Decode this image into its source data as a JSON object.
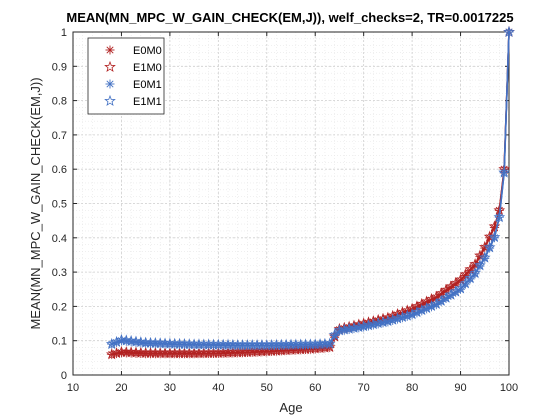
{
  "chart_data": {
    "type": "line",
    "title": "MEAN(MN_MPC_W_GAIN_CHECK(EM,J)), welf_checks=2, TR=0.0017225",
    "xlabel": "Age",
    "ylabel": "MEAN(MN_MPC_W_GAIN_CHECK(EM,J))",
    "xlim": [
      10,
      100
    ],
    "ylim": [
      0,
      1
    ],
    "xticks": [
      "10",
      "20",
      "30",
      "40",
      "50",
      "60",
      "70",
      "80",
      "90",
      "100"
    ],
    "yticks": [
      "0",
      "0.1",
      "0.2",
      "0.3",
      "0.4",
      "0.5",
      "0.6",
      "0.7",
      "0.8",
      "0.9",
      "1"
    ],
    "grid": "on",
    "legend_position": "top-left",
    "x_range": [
      18,
      100
    ],
    "series": [
      {
        "name": "E0M0",
        "marker": "asterisk",
        "color": "#b22222",
        "points": [
          [
            18,
            0.06
          ],
          [
            20,
            0.065
          ],
          [
            25,
            0.062
          ],
          [
            30,
            0.062
          ],
          [
            35,
            0.062
          ],
          [
            40,
            0.063
          ],
          [
            45,
            0.065
          ],
          [
            50,
            0.068
          ],
          [
            55,
            0.072
          ],
          [
            60,
            0.076
          ],
          [
            63,
            0.08
          ],
          [
            64,
            0.11
          ],
          [
            65,
            0.132
          ],
          [
            70,
            0.148
          ],
          [
            75,
            0.165
          ],
          [
            80,
            0.19
          ],
          [
            85,
            0.225
          ],
          [
            90,
            0.275
          ],
          [
            93,
            0.32
          ],
          [
            95,
            0.37
          ],
          [
            97,
            0.43
          ],
          [
            98,
            0.48
          ],
          [
            99,
            0.6
          ],
          [
            100,
            1.0
          ]
        ]
      },
      {
        "name": "E1M0",
        "marker": "star",
        "color": "#b22222",
        "points": [
          [
            18,
            0.06
          ],
          [
            20,
            0.067
          ],
          [
            25,
            0.064
          ],
          [
            30,
            0.063
          ],
          [
            35,
            0.063
          ],
          [
            40,
            0.064
          ],
          [
            45,
            0.066
          ],
          [
            50,
            0.069
          ],
          [
            55,
            0.073
          ],
          [
            60,
            0.077
          ],
          [
            63,
            0.081
          ],
          [
            64,
            0.112
          ],
          [
            65,
            0.134
          ],
          [
            70,
            0.15
          ],
          [
            75,
            0.167
          ],
          [
            80,
            0.193
          ],
          [
            85,
            0.228
          ],
          [
            90,
            0.278
          ],
          [
            93,
            0.323
          ],
          [
            95,
            0.373
          ],
          [
            97,
            0.433
          ],
          [
            98,
            0.48
          ],
          [
            99,
            0.6
          ],
          [
            100,
            1.0
          ]
        ]
      },
      {
        "name": "E0M1",
        "marker": "asterisk",
        "color": "#4472c4",
        "points": [
          [
            18,
            0.09
          ],
          [
            20,
            0.1
          ],
          [
            25,
            0.092
          ],
          [
            30,
            0.09
          ],
          [
            35,
            0.088
          ],
          [
            40,
            0.087
          ],
          [
            45,
            0.086
          ],
          [
            50,
            0.086
          ],
          [
            55,
            0.087
          ],
          [
            60,
            0.088
          ],
          [
            63,
            0.09
          ],
          [
            64,
            0.115
          ],
          [
            65,
            0.128
          ],
          [
            70,
            0.14
          ],
          [
            75,
            0.155
          ],
          [
            80,
            0.175
          ],
          [
            85,
            0.205
          ],
          [
            90,
            0.25
          ],
          [
            93,
            0.295
          ],
          [
            95,
            0.34
          ],
          [
            97,
            0.4
          ],
          [
            98,
            0.46
          ],
          [
            99,
            0.59
          ],
          [
            100,
            1.0
          ]
        ]
      },
      {
        "name": "E1M1",
        "marker": "star",
        "color": "#4472c4",
        "points": [
          [
            18,
            0.09
          ],
          [
            20,
            0.102
          ],
          [
            25,
            0.094
          ],
          [
            30,
            0.091
          ],
          [
            35,
            0.089
          ],
          [
            40,
            0.088
          ],
          [
            45,
            0.087
          ],
          [
            50,
            0.087
          ],
          [
            55,
            0.088
          ],
          [
            60,
            0.089
          ],
          [
            63,
            0.091
          ],
          [
            64,
            0.117
          ],
          [
            65,
            0.13
          ],
          [
            70,
            0.142
          ],
          [
            75,
            0.157
          ],
          [
            80,
            0.177
          ],
          [
            85,
            0.207
          ],
          [
            90,
            0.252
          ],
          [
            93,
            0.297
          ],
          [
            95,
            0.342
          ],
          [
            97,
            0.402
          ],
          [
            98,
            0.46
          ],
          [
            99,
            0.59
          ],
          [
            100,
            1.0
          ]
        ]
      }
    ]
  }
}
